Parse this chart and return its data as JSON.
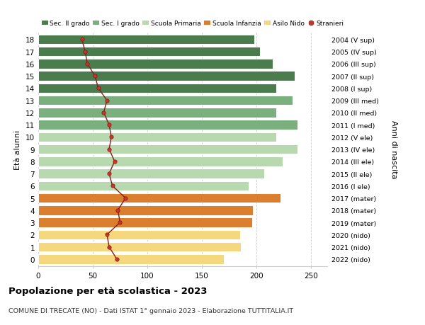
{
  "ages": [
    18,
    17,
    16,
    15,
    14,
    13,
    12,
    11,
    10,
    9,
    8,
    7,
    6,
    5,
    4,
    3,
    2,
    1,
    0
  ],
  "right_labels": [
    "2004 (V sup)",
    "2005 (IV sup)",
    "2006 (III sup)",
    "2007 (II sup)",
    "2008 (I sup)",
    "2009 (III med)",
    "2010 (II med)",
    "2011 (I med)",
    "2012 (V ele)",
    "2013 (IV ele)",
    "2014 (III ele)",
    "2015 (II ele)",
    "2016 (I ele)",
    "2017 (mater)",
    "2018 (mater)",
    "2019 (mater)",
    "2020 (nido)",
    "2021 (nido)",
    "2022 (nido)"
  ],
  "bar_values": [
    198,
    203,
    215,
    235,
    218,
    233,
    218,
    238,
    218,
    238,
    224,
    207,
    193,
    222,
    197,
    196,
    185,
    186,
    170
  ],
  "bar_colors": [
    "#4a7c4e",
    "#4a7c4e",
    "#4a7c4e",
    "#4a7c4e",
    "#4a7c4e",
    "#7ab07e",
    "#7ab07e",
    "#7ab07e",
    "#b8d8b0",
    "#b8d8b0",
    "#b8d8b0",
    "#b8d8b0",
    "#b8d8b0",
    "#d97f2e",
    "#d97f2e",
    "#d97f2e",
    "#f5d87e",
    "#f5d87e",
    "#f5d87e"
  ],
  "stranieri_values": [
    40,
    43,
    45,
    52,
    55,
    63,
    60,
    65,
    67,
    65,
    70,
    65,
    68,
    80,
    73,
    75,
    63,
    65,
    72
  ],
  "legend_labels": [
    "Sec. II grado",
    "Sec. I grado",
    "Scuola Primaria",
    "Scuola Infanzia",
    "Asilo Nido",
    "Stranieri"
  ],
  "legend_colors": [
    "#4a7c4e",
    "#7ab07e",
    "#b8d8b0",
    "#d97f2e",
    "#f5d87e",
    "#c0392b"
  ],
  "ylabel_left": "Età alunni",
  "ylabel_right": "Anni di nascita",
  "title": "Popolazione per età scolastica - 2023",
  "subtitle": "COMUNE DI TRECATE (NO) - Dati ISTAT 1° gennaio 2023 - Elaborazione TUTTITALIA.IT",
  "xlim": [
    0,
    265
  ],
  "background_color": "#ffffff",
  "grid_color": "#cccccc"
}
